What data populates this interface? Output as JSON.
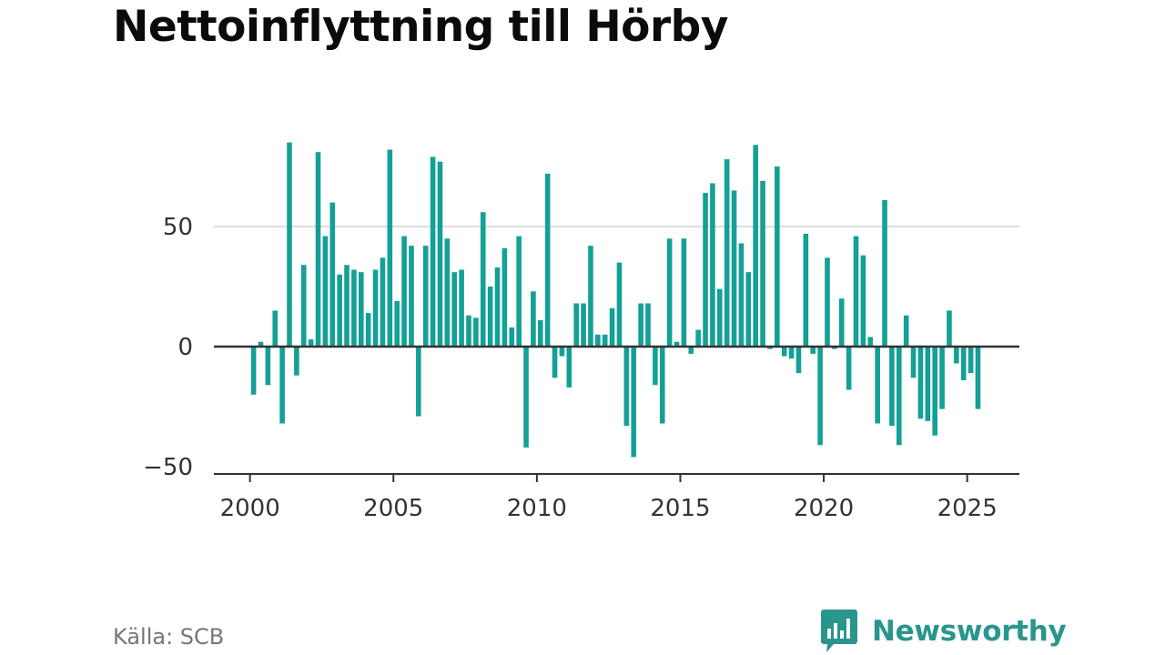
{
  "title": "Nettoinflyttning till Hörby",
  "source": "Källa: SCB",
  "brand": {
    "name": "Newsworthy",
    "color": "#2a958d",
    "icon": "newsworthy-bubble-icon"
  },
  "colors": {
    "bar": "#14a096",
    "zero_line": "#333333",
    "grid": "#dddddd"
  },
  "chart_data": {
    "type": "bar",
    "x_start": "2000 Q1",
    "x_step": "quarter",
    "x_ticks": [
      "2000",
      "2005",
      "2010",
      "2015",
      "2020",
      "2025"
    ],
    "y_ticks": [
      "50",
      "0",
      "−50"
    ],
    "ylim": [
      -52,
      90
    ],
    "grid": true,
    "values": [
      -20,
      2,
      -16,
      15,
      -32,
      85,
      -12,
      34,
      3,
      81,
      46,
      60,
      30,
      34,
      32,
      31,
      14,
      32,
      37,
      82,
      19,
      46,
      42,
      -29,
      42,
      79,
      77,
      45,
      31,
      32,
      13,
      12,
      56,
      25,
      33,
      41,
      8,
      46,
      -42,
      23,
      11,
      72,
      -13,
      -4,
      -17,
      18,
      18,
      42,
      5,
      5,
      16,
      35,
      -33,
      -46,
      18,
      18,
      -16,
      -32,
      45,
      2,
      45,
      -3,
      7,
      64,
      68,
      24,
      78,
      65,
      43,
      31,
      84,
      69,
      -1,
      75,
      -4,
      -5,
      -11,
      47,
      -3,
      -41,
      37,
      -1,
      20,
      -18,
      46,
      38,
      4,
      -32,
      61,
      -33,
      -41,
      13,
      -13,
      -30,
      -31,
      -37,
      -26,
      15,
      -7,
      -14,
      -11,
      -26
    ]
  }
}
